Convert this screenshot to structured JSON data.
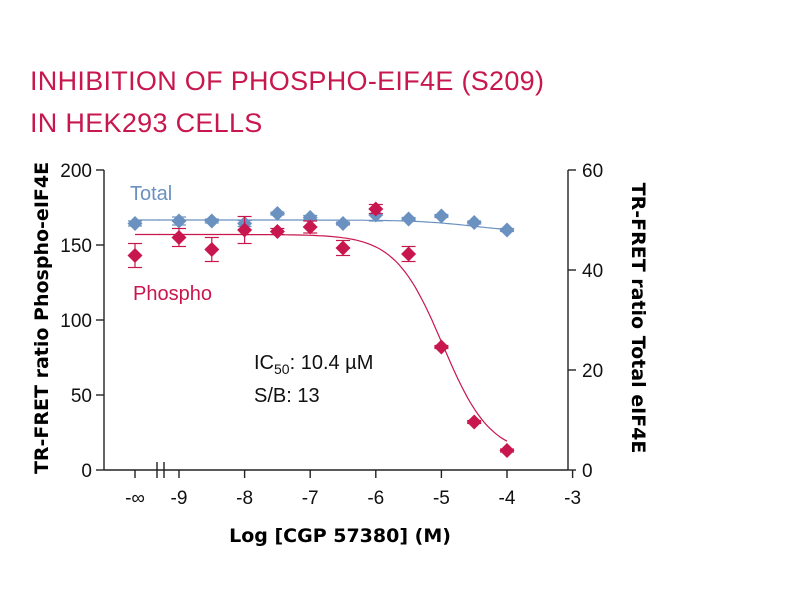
{
  "chart_data": {
    "type": "scatter",
    "title_lines": [
      "INHIBITION OF PHOSPHO-EIF4E (S209)",
      "IN HEK293 CELLS"
    ],
    "xlabel": "Log [CGP 57380] (M)",
    "ylabel_left": "TR-FRET ratio Phospho-eIF4E",
    "ylabel_right": "TR-FRET ratio Total eIF4E",
    "x_ticks": [
      "-∞",
      "-9",
      "-8",
      "-7",
      "-6",
      "-5",
      "-4",
      "-3"
    ],
    "y_left": {
      "ticks": [
        "0",
        "50",
        "100",
        "150",
        "200"
      ],
      "ylim": [
        0,
        200
      ]
    },
    "y_right": {
      "ticks": [
        "0",
        "20",
        "40",
        "60"
      ],
      "ylim": [
        0,
        60
      ]
    },
    "annotation": {
      "ic50_prefix": "IC",
      "ic50_sub": "50",
      "ic50_value": ": 10.4 µM",
      "sb": "S/B: 13"
    },
    "series": [
      {
        "name": "Total",
        "axis": "right",
        "color": "#6b91c1",
        "marker": "diamond",
        "points": [
          {
            "x": "-inf",
            "y": 49.3,
            "err": 0.5
          },
          {
            "x": -9.0,
            "y": 49.8,
            "err": 0.8
          },
          {
            "x": -8.5,
            "y": 49.8,
            "err": 0.4
          },
          {
            "x": -8.0,
            "y": 49.3,
            "err": 0.6
          },
          {
            "x": -7.5,
            "y": 51.3,
            "err": 0.3
          },
          {
            "x": -7.0,
            "y": 50.5,
            "err": 0.4
          },
          {
            "x": -6.5,
            "y": 49.3,
            "err": 0.3
          },
          {
            "x": -6.0,
            "y": 51.0,
            "err": 1.2
          },
          {
            "x": -5.5,
            "y": 50.2,
            "err": 0.3
          },
          {
            "x": -5.0,
            "y": 50.8,
            "err": 0.3
          },
          {
            "x": -4.5,
            "y": 49.5,
            "err": 0.3
          },
          {
            "x": -4.0,
            "y": 48.0,
            "err": 0.3
          }
        ]
      },
      {
        "name": "Phospho",
        "axis": "left",
        "color": "#c8174e",
        "marker": "diamond",
        "points": [
          {
            "x": "-inf",
            "y": 143,
            "err": 8
          },
          {
            "x": -9.0,
            "y": 155,
            "err": 6
          },
          {
            "x": -8.5,
            "y": 147,
            "err": 8
          },
          {
            "x": -8.0,
            "y": 160,
            "err": 9
          },
          {
            "x": -7.5,
            "y": 159,
            "err": 2
          },
          {
            "x": -7.0,
            "y": 162,
            "err": 4
          },
          {
            "x": -6.5,
            "y": 148,
            "err": 5
          },
          {
            "x": -6.0,
            "y": 174,
            "err": 3
          },
          {
            "x": -5.5,
            "y": 144,
            "err": 5
          },
          {
            "x": -5.0,
            "y": 82,
            "err": 1
          },
          {
            "x": -4.5,
            "y": 32,
            "err": 1
          },
          {
            "x": -4.0,
            "y": 13,
            "err": 1
          }
        ]
      }
    ],
    "fits": [
      {
        "series": "Total",
        "axis": "right",
        "top": 50.0,
        "bottom": 47.5,
        "logIC50": -4.5,
        "hill": 1.0
      },
      {
        "series": "Phospho",
        "axis": "left",
        "top": 157,
        "bottom": 10,
        "logIC50": -4.98,
        "hill": 1.2
      }
    ]
  }
}
